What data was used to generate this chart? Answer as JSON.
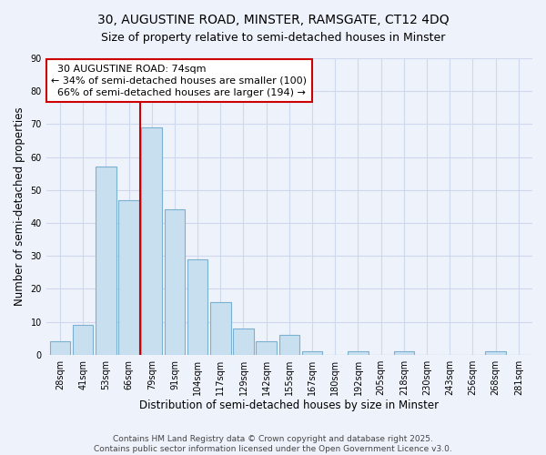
{
  "title": "30, AUGUSTINE ROAD, MINSTER, RAMSGATE, CT12 4DQ",
  "subtitle": "Size of property relative to semi-detached houses in Minster",
  "xlabel": "Distribution of semi-detached houses by size in Minster",
  "ylabel": "Number of semi-detached properties",
  "categories": [
    "28sqm",
    "41sqm",
    "53sqm",
    "66sqm",
    "79sqm",
    "91sqm",
    "104sqm",
    "117sqm",
    "129sqm",
    "142sqm",
    "155sqm",
    "167sqm",
    "180sqm",
    "192sqm",
    "205sqm",
    "218sqm",
    "230sqm",
    "243sqm",
    "256sqm",
    "268sqm",
    "281sqm"
  ],
  "values": [
    4,
    9,
    57,
    47,
    69,
    44,
    29,
    16,
    8,
    4,
    6,
    1,
    0,
    1,
    0,
    1,
    0,
    0,
    0,
    1,
    0
  ],
  "bar_color": "#c8dff0",
  "bar_edge_color": "#7ab0d0",
  "property_line_color": "#cc0000",
  "property_line_x": 3.5,
  "annotation_line1": "30 AUGUSTINE ROAD: 74sqm",
  "annotation_line2": "← 34% of semi-detached houses are smaller (100)",
  "annotation_line3": "66% of semi-detached houses are larger (194) →",
  "annotation_box_facecolor": "#ffffff",
  "annotation_box_edgecolor": "#cc0000",
  "ylim": [
    0,
    90
  ],
  "yticks": [
    0,
    10,
    20,
    30,
    40,
    50,
    60,
    70,
    80,
    90
  ],
  "footer1": "Contains HM Land Registry data © Crown copyright and database right 2025.",
  "footer2": "Contains public sector information licensed under the Open Government Licence v3.0.",
  "bg_color": "#eef2fb",
  "grid_color": "#d0d8ee",
  "title_fontsize": 10,
  "subtitle_fontsize": 9,
  "axis_label_fontsize": 8.5,
  "tick_fontsize": 7,
  "annotation_fontsize": 8,
  "footer_fontsize": 6.5
}
